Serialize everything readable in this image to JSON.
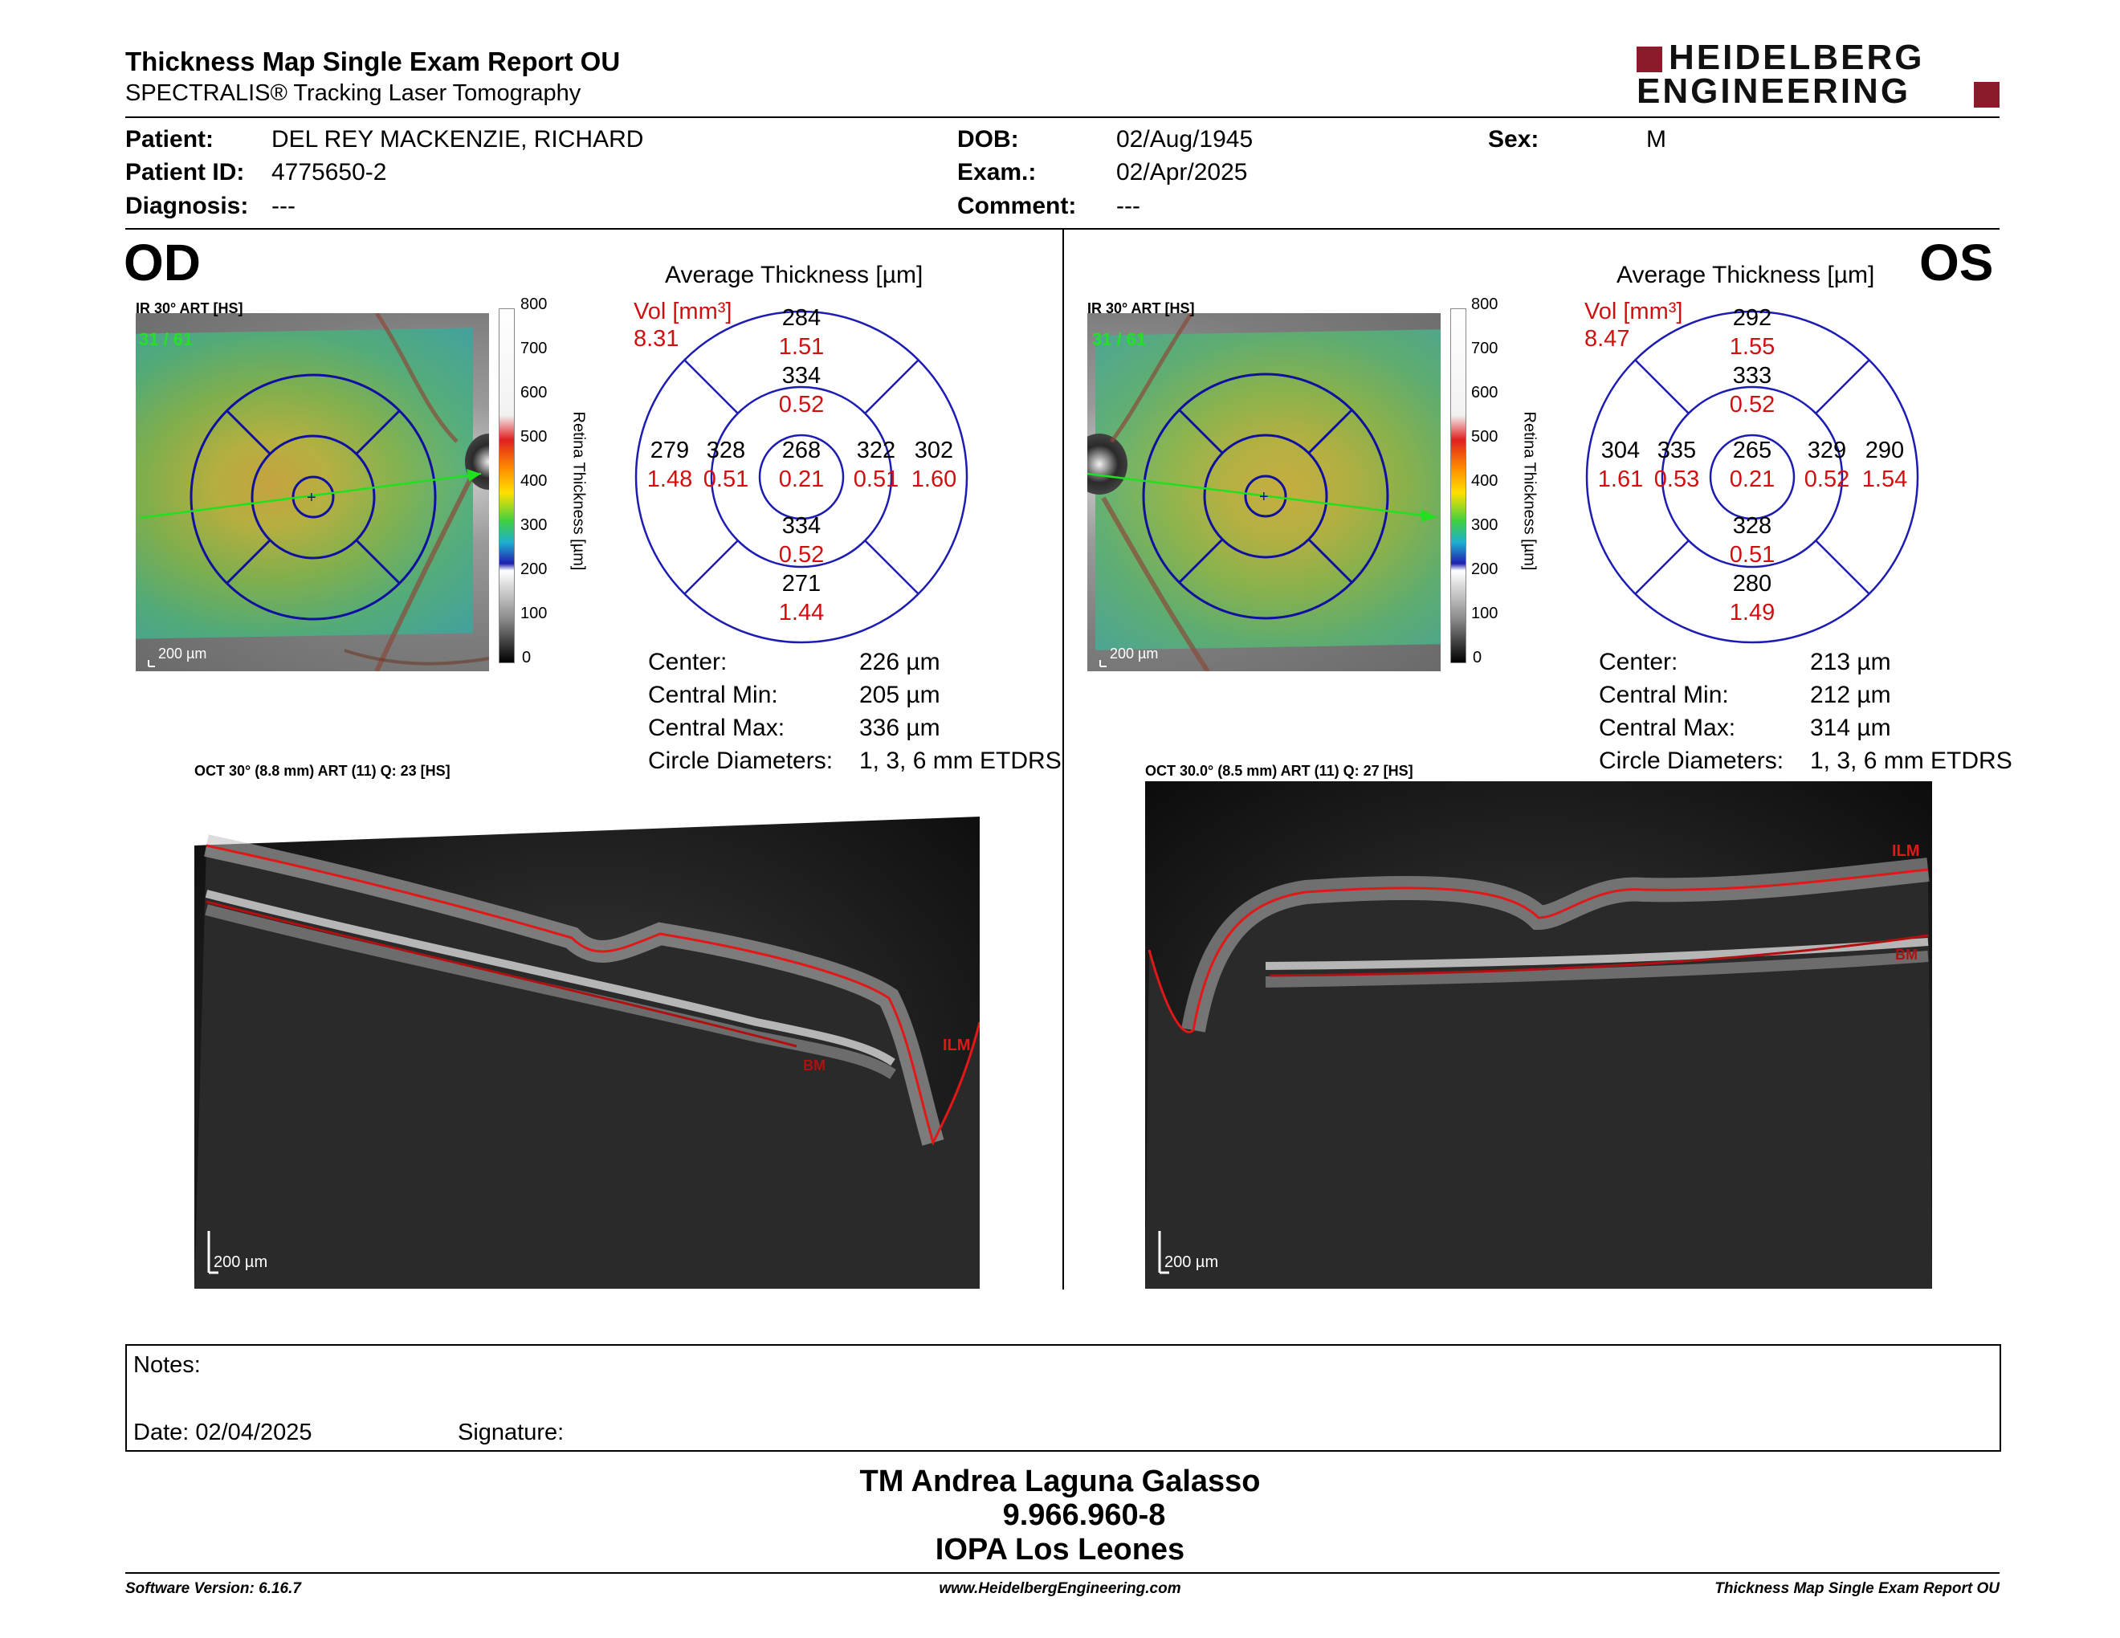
{
  "header": {
    "title": "Thickness Map Single Exam Report OU",
    "subtitle": "SPECTRALIS® Tracking Laser Tomography",
    "logo_line1": "HEIDELBERG",
    "logo_line2": "ENGINEERING"
  },
  "patient": {
    "patient_label": "Patient:",
    "patient_value": "DEL REY MACKENZIE, RICHARD",
    "id_label": "Patient ID:",
    "id_value": "4775650-2",
    "diag_label": "Diagnosis:",
    "diag_value": "---",
    "dob_label": "DOB:",
    "dob_value": "02/Aug/1945",
    "exam_label": "Exam.:",
    "exam_value": "02/Apr/2025",
    "comment_label": "Comment:",
    "comment_value": "---",
    "sex_label": "Sex:",
    "sex_value": "M"
  },
  "od": {
    "eye": "OD",
    "ir_label": "IR 30° ART [HS]",
    "ir_counter": "31 / 61",
    "scale": "200 µm",
    "colorbar_ticks": [
      "800",
      "700",
      "600",
      "500",
      "400",
      "300",
      "200",
      "100",
      "0"
    ],
    "colorbar_title": "Retina  Thickness [µm]",
    "avg_title": "Average Thickness [µm]",
    "vol_label": "Vol [mm³]",
    "vol_value": "8.31",
    "sectors": {
      "outer_sup": {
        "t": "284",
        "v": "1.51"
      },
      "inner_sup": {
        "t": "334",
        "v": "0.52"
      },
      "outer_left": {
        "t": "279",
        "v": "1.48"
      },
      "inner_left": {
        "t": "328",
        "v": "0.51"
      },
      "center": {
        "t": "268",
        "v": "0.21"
      },
      "inner_right": {
        "t": "322",
        "v": "0.51"
      },
      "outer_right": {
        "t": "302",
        "v": "1.60"
      },
      "inner_inf": {
        "t": "334",
        "v": "0.52"
      },
      "outer_inf": {
        "t": "271",
        "v": "1.44"
      }
    },
    "metrics": [
      {
        "label": "Center:",
        "value": "226 µm"
      },
      {
        "label": "Central Min:",
        "value": "205 µm"
      },
      {
        "label": "Central Max:",
        "value": "336 µm"
      },
      {
        "label": "Circle Diameters:",
        "value": "1, 3, 6 mm ETDRS"
      }
    ],
    "oct_label": "OCT 30° (8.8 mm) ART (11) Q: 23 [HS]",
    "oct_scale": "200 µm",
    "ilm": "ILM",
    "bm": "BM"
  },
  "os": {
    "eye": "OS",
    "ir_label": "IR 30° ART [HS]",
    "ir_counter": "31 / 61",
    "scale": "200 µm",
    "colorbar_ticks": [
      "800",
      "700",
      "600",
      "500",
      "400",
      "300",
      "200",
      "100",
      "0"
    ],
    "colorbar_title": "Retina  Thickness [µm]",
    "avg_title": "Average Thickness [µm]",
    "vol_label": "Vol [mm³]",
    "vol_value": "8.47",
    "sectors": {
      "outer_sup": {
        "t": "292",
        "v": "1.55"
      },
      "inner_sup": {
        "t": "333",
        "v": "0.52"
      },
      "outer_left": {
        "t": "304",
        "v": "1.61"
      },
      "inner_left": {
        "t": "335",
        "v": "0.53"
      },
      "center": {
        "t": "265",
        "v": "0.21"
      },
      "inner_right": {
        "t": "329",
        "v": "0.52"
      },
      "outer_right": {
        "t": "290",
        "v": "1.54"
      },
      "inner_inf": {
        "t": "328",
        "v": "0.51"
      },
      "outer_inf": {
        "t": "280",
        "v": "1.49"
      }
    },
    "metrics": [
      {
        "label": "Center:",
        "value": "213 µm"
      },
      {
        "label": "Central Min:",
        "value": "212 µm"
      },
      {
        "label": "Central Max:",
        "value": "314 µm"
      },
      {
        "label": "Circle Diameters:",
        "value": "1, 3, 6 mm ETDRS"
      }
    ],
    "oct_label": "OCT 30.0° (8.5 mm) ART (11) Q: 27 [HS]",
    "oct_scale": "200 µm",
    "ilm": "ILM",
    "bm": "BM"
  },
  "notes": {
    "notes_label": "Notes:",
    "date_label": "Date: 02/04/2025",
    "signature_label": "Signature:"
  },
  "signer": {
    "name": "TM Andrea Laguna Galasso",
    "id": "9.966.960-8",
    "clinic": "IOPA Los Leones"
  },
  "footer": {
    "software": "Software Version: 6.16.7",
    "website": "www.HeidelbergEngineering.com",
    "report": "Thickness Map Single Exam Report OU"
  },
  "colors": {
    "accent_red": "#8b1a2b",
    "value_red": "#d01010",
    "grid_blue": "#1c1cb4"
  }
}
